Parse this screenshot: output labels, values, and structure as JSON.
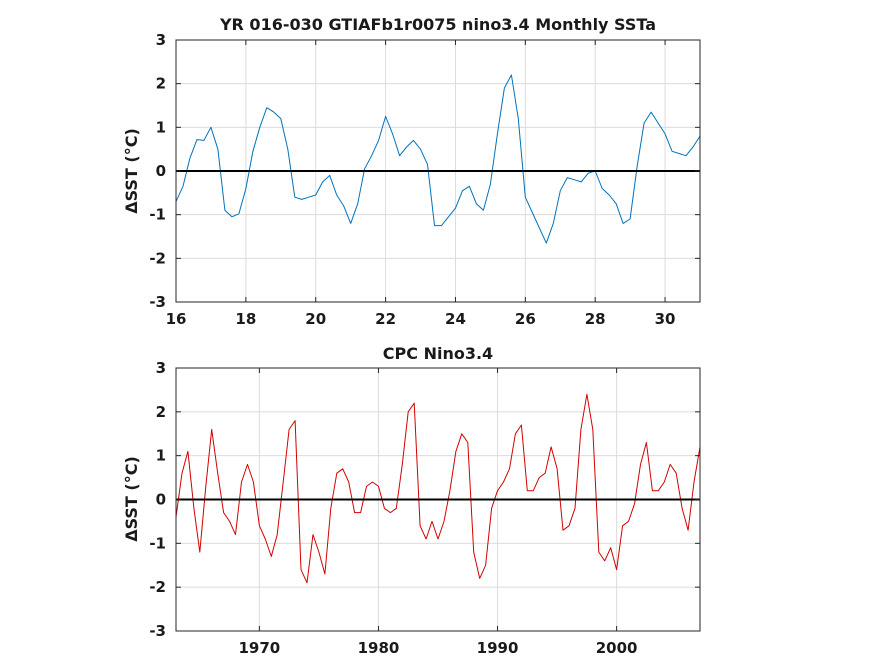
{
  "chart_data": [
    {
      "type": "line",
      "title": "YR 016-030 GTIAFb1r0075 nino3.4 Monthly SSTa",
      "xlabel": "",
      "ylabel": "ΔSST (°C)",
      "xlim": [
        16,
        31
      ],
      "ylim": [
        -3,
        3
      ],
      "xticks": [
        16,
        18,
        20,
        22,
        24,
        26,
        28,
        30
      ],
      "yticks": [
        -3,
        -2,
        -1,
        0,
        1,
        2,
        3
      ],
      "grid": true,
      "zero_line": true,
      "line_color": "#0072bd",
      "series": [
        {
          "x": [
            16.0,
            16.2,
            16.4,
            16.6,
            16.8,
            17.0,
            17.2,
            17.4,
            17.6,
            17.8,
            18.0,
            18.2,
            18.4,
            18.6,
            18.8,
            19.0,
            19.2,
            19.4,
            19.6,
            19.8,
            20.0,
            20.2,
            20.4,
            20.6,
            20.8,
            21.0,
            21.2,
            21.4,
            21.6,
            21.8,
            22.0,
            22.2,
            22.4,
            22.6,
            22.8,
            23.0,
            23.2,
            23.4,
            23.6,
            23.8,
            24.0,
            24.2,
            24.4,
            24.6,
            24.8,
            25.0,
            25.2,
            25.4,
            25.6,
            25.8,
            26.0,
            26.2,
            26.4,
            26.6,
            26.8,
            27.0,
            27.2,
            27.4,
            27.6,
            27.8,
            28.0,
            28.2,
            28.4,
            28.6,
            28.8,
            29.0,
            29.2,
            29.4,
            29.6,
            29.8,
            30.0,
            30.2,
            30.4,
            30.6,
            30.8,
            31.0
          ],
          "values": [
            -0.7,
            -0.35,
            0.3,
            0.72,
            0.7,
            1.0,
            0.5,
            -0.9,
            -1.05,
            -0.98,
            -0.4,
            0.45,
            1.0,
            1.45,
            1.35,
            1.2,
            0.5,
            -0.6,
            -0.65,
            -0.6,
            -0.55,
            -0.25,
            -0.1,
            -0.55,
            -0.8,
            -1.2,
            -0.75,
            0.05,
            0.35,
            0.7,
            1.25,
            0.85,
            0.35,
            0.55,
            0.7,
            0.5,
            0.15,
            -1.25,
            -1.25,
            -1.05,
            -0.85,
            -0.45,
            -0.35,
            -0.75,
            -0.9,
            -0.3,
            0.85,
            1.9,
            2.2,
            1.2,
            -0.6,
            -0.95,
            -1.3,
            -1.65,
            -1.2,
            -0.45,
            -0.15,
            -0.2,
            -0.25,
            -0.05,
            0.0,
            -0.4,
            -0.55,
            -0.75,
            -1.2,
            -1.1,
            0.1,
            1.1,
            1.35,
            1.1,
            0.85,
            0.45,
            0.4,
            0.35,
            0.55,
            0.8
          ]
        }
      ]
    },
    {
      "type": "line",
      "title": "CPC Nino3.4",
      "xlabel": "",
      "ylabel": "ΔSST (°C)",
      "xlim": [
        1963,
        2007
      ],
      "ylim": [
        -3,
        3
      ],
      "xticks": [
        1970,
        1980,
        1990,
        2000
      ],
      "yticks": [
        -3,
        -2,
        -1,
        0,
        1,
        2,
        3
      ],
      "grid": true,
      "zero_line": true,
      "line_color": "#d40000",
      "series": [
        {
          "x": [
            1963.0,
            1963.5,
            1964.0,
            1964.5,
            1965.0,
            1965.5,
            1966.0,
            1966.5,
            1967.0,
            1967.5,
            1968.0,
            1968.5,
            1969.0,
            1969.5,
            1970.0,
            1970.5,
            1971.0,
            1971.5,
            1972.0,
            1972.5,
            1973.0,
            1973.5,
            1974.0,
            1974.5,
            1975.0,
            1975.5,
            1976.0,
            1976.5,
            1977.0,
            1977.5,
            1978.0,
            1978.5,
            1979.0,
            1979.5,
            1980.0,
            1980.5,
            1981.0,
            1981.5,
            1982.0,
            1982.5,
            1983.0,
            1983.5,
            1984.0,
            1984.5,
            1985.0,
            1985.5,
            1986.0,
            1986.5,
            1987.0,
            1987.5,
            1988.0,
            1988.5,
            1989.0,
            1989.5,
            1990.0,
            1990.5,
            1991.0,
            1991.5,
            1992.0,
            1992.5,
            1993.0,
            1993.5,
            1994.0,
            1994.5,
            1995.0,
            1995.5,
            1996.0,
            1996.5,
            1997.0,
            1997.5,
            1998.0,
            1998.5,
            1999.0,
            1999.5,
            2000.0,
            2000.5,
            2001.0,
            2001.5,
            2002.0,
            2002.5,
            2003.0,
            2003.5,
            2004.0,
            2004.5,
            2005.0,
            2005.5,
            2006.0,
            2006.5,
            2007.0
          ],
          "values": [
            -0.4,
            0.6,
            1.1,
            -0.2,
            -1.2,
            0.3,
            1.6,
            0.6,
            -0.3,
            -0.5,
            -0.8,
            0.4,
            0.8,
            0.4,
            -0.6,
            -0.9,
            -1.3,
            -0.8,
            0.4,
            1.6,
            1.8,
            -1.6,
            -1.9,
            -0.8,
            -1.2,
            -1.7,
            -0.2,
            0.6,
            0.7,
            0.4,
            -0.3,
            -0.3,
            0.3,
            0.4,
            0.3,
            -0.2,
            -0.3,
            -0.2,
            0.8,
            2.0,
            2.2,
            -0.6,
            -0.9,
            -0.5,
            -0.9,
            -0.5,
            0.2,
            1.1,
            1.5,
            1.3,
            -1.2,
            -1.8,
            -1.5,
            -0.2,
            0.2,
            0.4,
            0.7,
            1.5,
            1.7,
            0.2,
            0.2,
            0.5,
            0.6,
            1.2,
            0.7,
            -0.7,
            -0.6,
            -0.2,
            1.6,
            2.4,
            1.6,
            -1.2,
            -1.4,
            -1.1,
            -1.6,
            -0.6,
            -0.5,
            -0.1,
            0.8,
            1.3,
            0.2,
            0.2,
            0.4,
            0.8,
            0.6,
            -0.2,
            -0.7,
            0.4,
            1.2
          ]
        }
      ]
    }
  ]
}
